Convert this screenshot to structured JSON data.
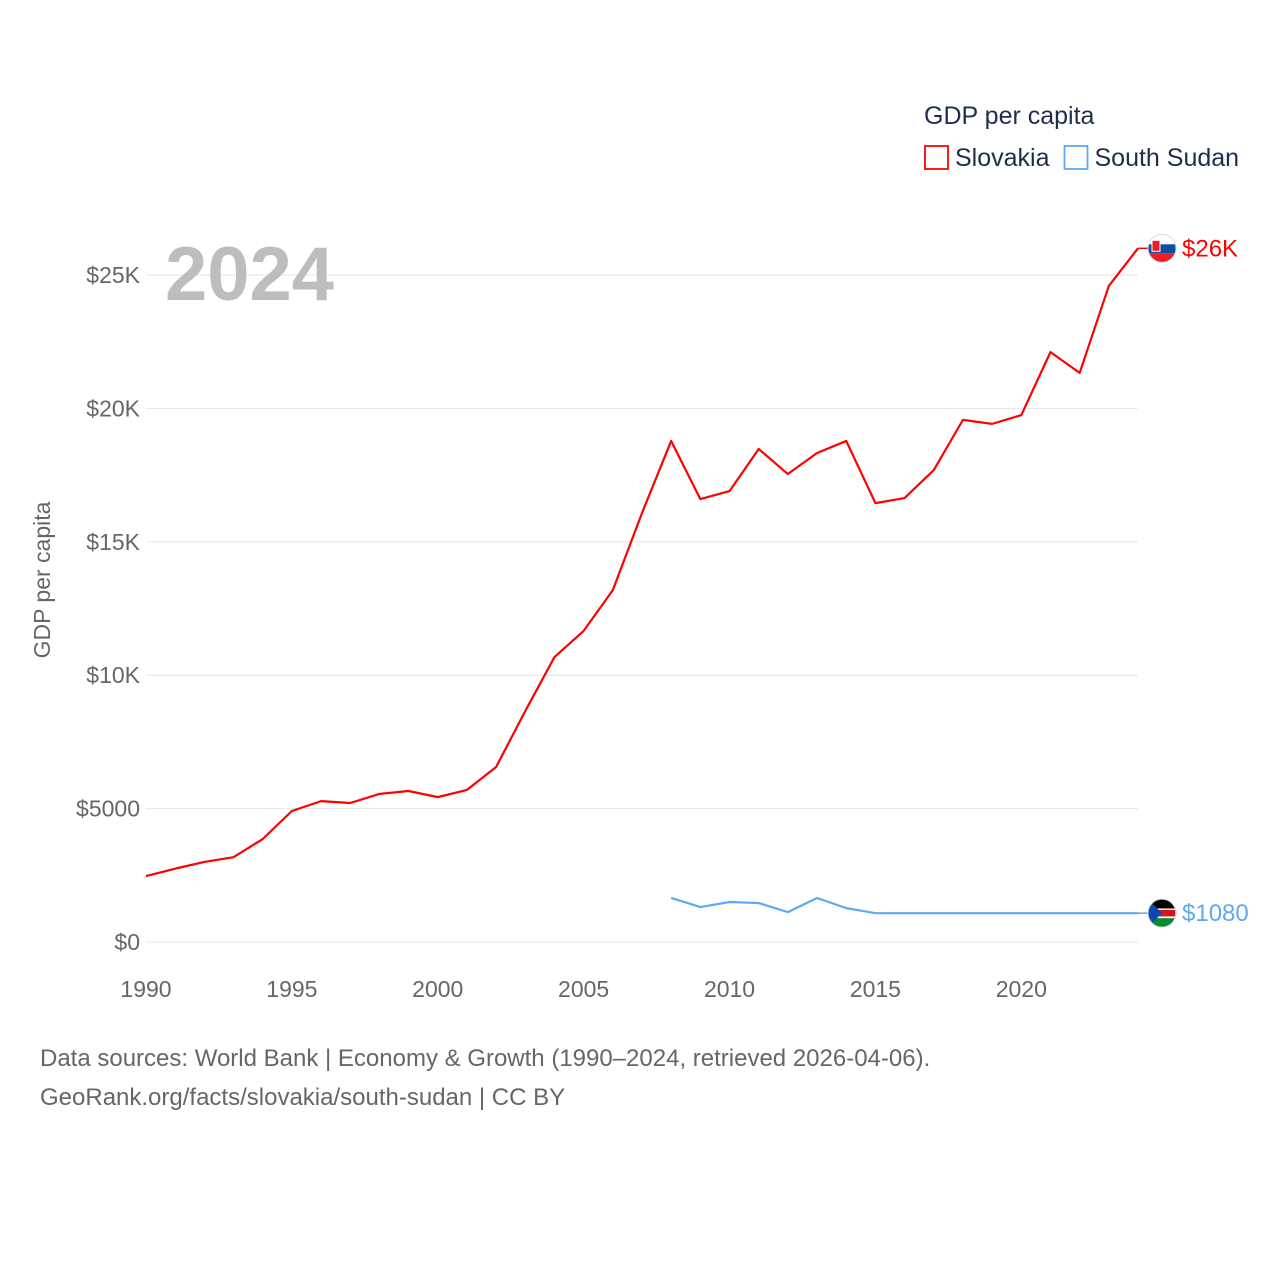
{
  "chart_data": {
    "type": "line",
    "title": "GDP per capita",
    "year_label": "2024",
    "ylabel": "GDP per capita",
    "xlabel": "",
    "xlim": [
      1990,
      2024
    ],
    "ylim": [
      0,
      27000
    ],
    "grid": true,
    "legend_position": "top-right",
    "x_ticks": [
      1990,
      1995,
      2000,
      2005,
      2010,
      2015,
      2020
    ],
    "x_tick_labels": [
      "1990",
      "1995",
      "2000",
      "2005",
      "2010",
      "2015",
      "2020"
    ],
    "y_ticks": [
      0,
      5000,
      10000,
      15000,
      20000,
      25000
    ],
    "y_tick_labels": [
      "$0",
      "$5000",
      "$10K",
      "$15K",
      "$20K",
      "$25K"
    ],
    "series": [
      {
        "name": "Slovakia",
        "color": "#ff0000",
        "end_label": "$26K",
        "x": [
          1990,
          1991,
          1992,
          1993,
          1994,
          1995,
          1996,
          1997,
          1998,
          1999,
          2000,
          2001,
          2002,
          2003,
          2004,
          2005,
          2006,
          2007,
          2008,
          2009,
          2010,
          2011,
          2012,
          2013,
          2014,
          2015,
          2016,
          2017,
          2018,
          2019,
          2020,
          2021,
          2022,
          2023,
          2024
        ],
        "values": [
          2470,
          2750,
          3000,
          3180,
          3860,
          4910,
          5280,
          5210,
          5550,
          5660,
          5430,
          5700,
          6560,
          8660,
          10680,
          11660,
          13190,
          16080,
          18780,
          16600,
          16900,
          18480,
          17540,
          18330,
          18780,
          16450,
          16640,
          17690,
          19570,
          19420,
          19750,
          22110,
          21330,
          24590,
          26000
        ]
      },
      {
        "name": "South Sudan",
        "color": "#5ea9f0",
        "end_label": "$1080",
        "x": [
          2008,
          2009,
          2010,
          2011,
          2012,
          2013,
          2014,
          2015,
          2016,
          2017,
          2018,
          2019,
          2020,
          2021,
          2022,
          2023,
          2024
        ],
        "values": [
          1650,
          1310,
          1500,
          1460,
          1120,
          1650,
          1270,
          1080,
          1080,
          1080,
          1080,
          1080,
          1080,
          1080,
          1080,
          1080,
          1080
        ]
      }
    ]
  },
  "footer": {
    "line1": "Data sources: World Bank | Economy & Growth (1990–2024, retrieved 2026-04-06).",
    "line2": "GeoRank.org/facts/slovakia/south-sudan | CC BY"
  }
}
